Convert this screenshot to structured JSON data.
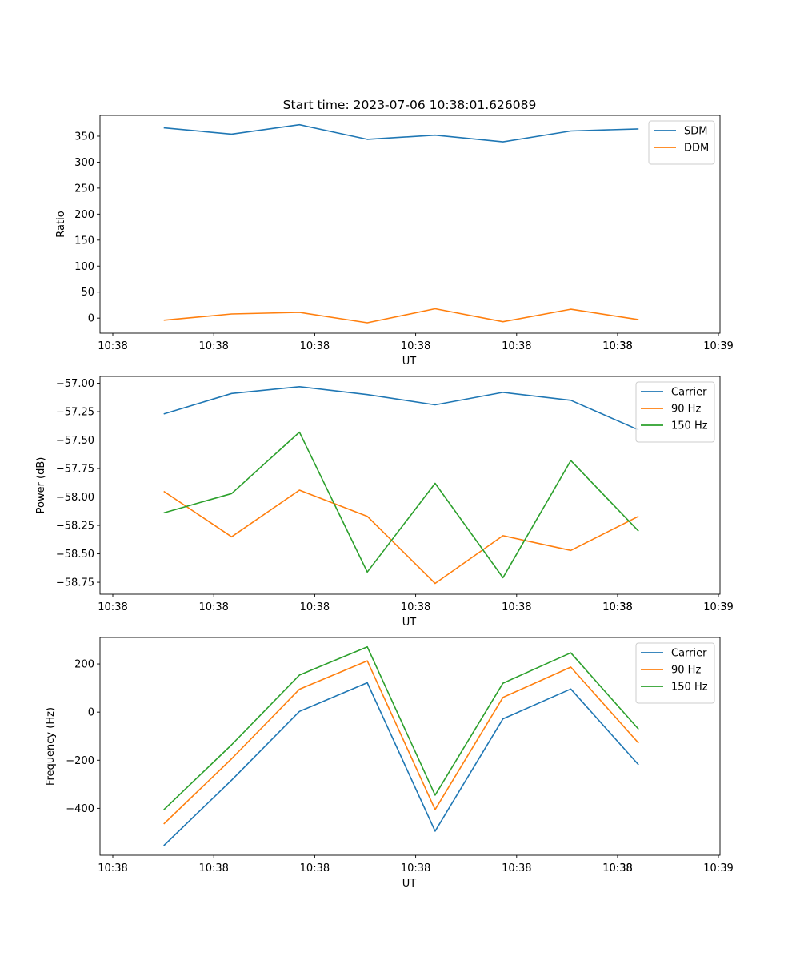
{
  "figure_title": "Start time: 2023-07-06 10:38:01.626089",
  "chart_data": [
    {
      "type": "line",
      "xlabel": "UT",
      "ylabel": "Ratio",
      "x_tick_labels": [
        "10:38",
        "10:38",
        "10:38",
        "10:38",
        "10:38",
        "10:38",
        "10:38",
        "10:39"
      ],
      "y_ticks": [
        0,
        50,
        100,
        150,
        200,
        250,
        300,
        350
      ],
      "y_tick_labels": [
        "0",
        "50",
        "100",
        "150",
        "200",
        "250",
        "300",
        "350"
      ],
      "ylim": [
        -29,
        390
      ],
      "x": [
        1,
        2,
        3,
        4,
        5,
        6,
        7,
        8
      ],
      "xlim": [
        0.06,
        9.2
      ],
      "legend": "top-right",
      "series": [
        {
          "name": "SDM",
          "color": "#1f77b4",
          "values": [
            366,
            354,
            372,
            344,
            352,
            339,
            360,
            364
          ]
        },
        {
          "name": "DDM",
          "color": "#ff7f0e",
          "values": [
            -4,
            8,
            11,
            -9,
            18,
            -7,
            17,
            -3
          ]
        }
      ]
    },
    {
      "type": "line",
      "xlabel": "UT",
      "ylabel": "Power (dB)",
      "x_tick_labels": [
        "10:38",
        "10:38",
        "10:38",
        "10:38",
        "10:38",
        "10:38",
        "10:38",
        "10:39"
      ],
      "y_ticks": [
        -58.75,
        -58.5,
        -58.25,
        -58.0,
        -57.75,
        -57.5,
        -57.25,
        -57.0
      ],
      "y_tick_labels": [
        "−58.75",
        "−58.50",
        "−58.25",
        "−58.00",
        "−57.75",
        "−57.50",
        "−57.25",
        "−57.00"
      ],
      "ylim": [
        -58.855,
        -56.94
      ],
      "x": [
        1,
        2,
        3,
        4,
        5,
        6,
        7,
        8
      ],
      "xlim": [
        0.06,
        9.2
      ],
      "legend": "top-right",
      "series": [
        {
          "name": "Carrier",
          "color": "#1f77b4",
          "values": [
            -57.27,
            -57.09,
            -57.03,
            -57.1,
            -57.19,
            -57.08,
            -57.15,
            -57.41
          ]
        },
        {
          "name": "90 Hz",
          "color": "#ff7f0e",
          "values": [
            -57.95,
            -58.35,
            -57.94,
            -58.17,
            -58.76,
            -58.34,
            -58.47,
            -58.17
          ]
        },
        {
          "name": "150 Hz",
          "color": "#2ca02c",
          "values": [
            -58.14,
            -57.97,
            -57.43,
            -58.66,
            -57.88,
            -58.71,
            -57.68,
            -58.3
          ]
        }
      ]
    },
    {
      "type": "line",
      "xlabel": "UT",
      "ylabel": "Frequency (Hz)",
      "x_tick_labels": [
        "10:38",
        "10:38",
        "10:38",
        "10:38",
        "10:38",
        "10:38",
        "10:38",
        "10:39"
      ],
      "y_ticks": [
        -400,
        -200,
        0,
        200
      ],
      "y_tick_labels": [
        "−400",
        "−200",
        "0",
        "200"
      ],
      "ylim": [
        -595,
        310
      ],
      "x": [
        1,
        2,
        3,
        4,
        5,
        6,
        7,
        8
      ],
      "xlim": [
        0.06,
        9.2
      ],
      "legend": "top-right",
      "series": [
        {
          "name": "Carrier",
          "color": "#1f77b4",
          "values": [
            -555,
            -283,
            3,
            122,
            -495,
            -28,
            96,
            -219
          ]
        },
        {
          "name": "90 Hz",
          "color": "#ff7f0e",
          "values": [
            -465,
            -194,
            95,
            213,
            -405,
            61,
            187,
            -129
          ]
        },
        {
          "name": "150 Hz",
          "color": "#2ca02c",
          "values": [
            -406,
            -136,
            154,
            271,
            -345,
            120,
            246,
            -71
          ]
        }
      ]
    }
  ]
}
